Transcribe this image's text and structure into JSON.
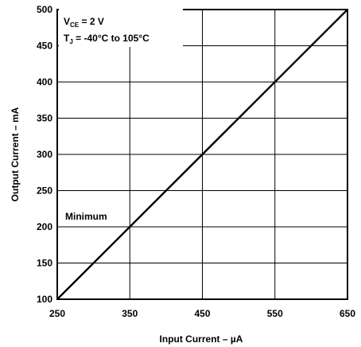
{
  "chart_data": {
    "type": "line",
    "xlabel": "Input Current – µA",
    "ylabel": "Output Current – mA",
    "xlim": [
      250,
      650
    ],
    "ylim": [
      100,
      500
    ],
    "x_ticks": [
      "250",
      "350",
      "450",
      "550",
      "650"
    ],
    "y_ticks": [
      "100",
      "150",
      "200",
      "250",
      "300",
      "350",
      "400",
      "450",
      "500"
    ],
    "grid": true,
    "series": [
      {
        "name": "Minimum",
        "x": [
          250,
          650
        ],
        "y": [
          100,
          500
        ]
      }
    ],
    "annotations": {
      "vce_main": "V",
      "vce_sub": "CE",
      "vce_rest": " = 2 V",
      "tj_main": "T",
      "tj_sub": "J",
      "tj_rest": " = -40°C to 105°C"
    },
    "colors": {
      "line": "#000000",
      "grid": "#000000"
    }
  }
}
